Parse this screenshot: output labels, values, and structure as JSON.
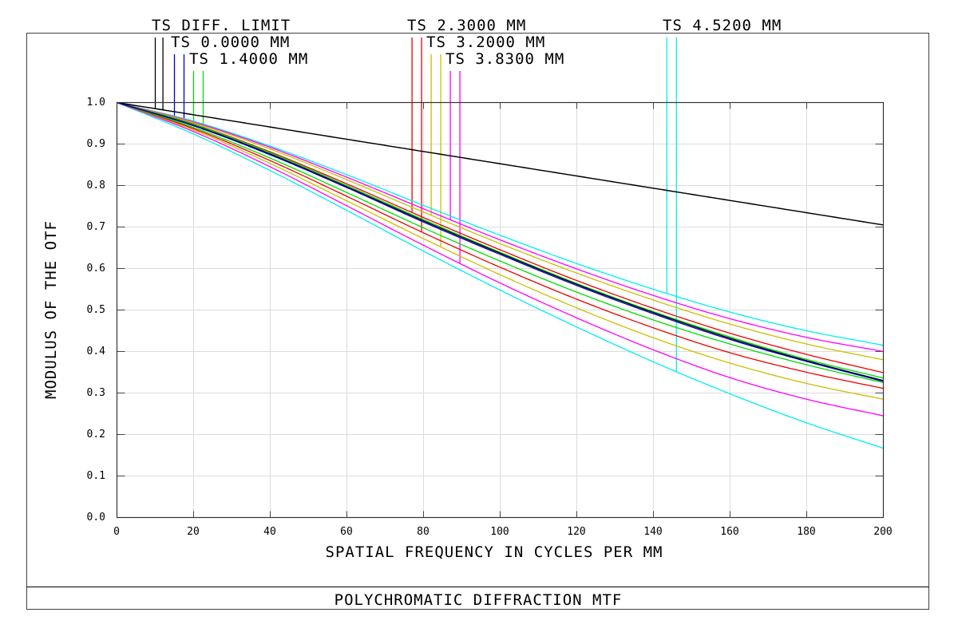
{
  "chart_data": {
    "type": "line",
    "title": "POLYCHROMATIC DIFFRACTION MTF",
    "xlabel": "SPATIAL FREQUENCY IN CYCLES PER MM",
    "ylabel": "MODULUS OF THE OTF",
    "xlim": [
      0,
      200
    ],
    "ylim": [
      0,
      1.0
    ],
    "grid": true,
    "x_ticks": [
      "0",
      "20",
      "40",
      "60",
      "80",
      "100",
      "120",
      "140",
      "160",
      "180",
      "200"
    ],
    "y_ticks": [
      "0.0",
      "0.1",
      "0.2",
      "0.3",
      "0.4",
      "0.5",
      "0.6",
      "0.7",
      "0.8",
      "0.9",
      "1.0"
    ],
    "x": [
      0,
      20,
      40,
      60,
      80,
      100,
      120,
      140,
      160,
      180,
      200
    ],
    "legend": [
      {
        "label": "TS DIFF. LIMIT",
        "color": "#000000"
      },
      {
        "label": "TS 0.0000 MM",
        "color": "#0000cc"
      },
      {
        "label": "TS 1.4000 MM",
        "color": "#00dd00"
      },
      {
        "label": "TS 2.3000 MM",
        "color": "#ee0000"
      },
      {
        "label": "TS 3.2000 MM",
        "color": "#c8c000"
      },
      {
        "label": "TS 3.8300 MM",
        "color": "#ff00ff"
      },
      {
        "label": "TS 4.5200 MM",
        "color": "#00eeee"
      }
    ],
    "series": [
      {
        "name": "DIFF. LIMIT T",
        "color": "#000000",
        "values": [
          1.0,
          0.9705,
          0.941,
          0.9115,
          0.882,
          0.8525,
          0.823,
          0.7935,
          0.764,
          0.7345,
          0.705
        ]
      },
      {
        "name": "DIFF. LIMIT S",
        "color": "#000000",
        "values": [
          1.0,
          0.9705,
          0.941,
          0.9115,
          0.882,
          0.8525,
          0.823,
          0.7935,
          0.764,
          0.7345,
          0.705
        ]
      },
      {
        "name": "0.0000 MM T",
        "color": "#000000",
        "values": [
          1.0,
          0.945,
          0.876,
          0.797,
          0.715,
          0.637,
          0.562,
          0.494,
          0.432,
          0.378,
          0.33
        ]
      },
      {
        "name": "0.0000 MM S",
        "color": "#0000cc",
        "values": [
          1.0,
          0.944,
          0.874,
          0.795,
          0.712,
          0.634,
          0.559,
          0.491,
          0.429,
          0.376,
          0.328
        ]
      },
      {
        "name": "1.4000 MM T",
        "color": "#00dd00",
        "values": [
          1.0,
          0.947,
          0.879,
          0.8,
          0.718,
          0.639,
          0.564,
          0.496,
          0.435,
          0.381,
          0.336
        ]
      },
      {
        "name": "1.4000 MM S",
        "color": "#00dd00",
        "values": [
          1.0,
          0.94,
          0.866,
          0.783,
          0.698,
          0.618,
          0.543,
          0.476,
          0.418,
          0.368,
          0.325
        ]
      },
      {
        "name": "2.3000 MM T",
        "color": "#ee0000",
        "values": [
          1.0,
          0.948,
          0.881,
          0.804,
          0.723,
          0.645,
          0.571,
          0.504,
          0.444,
          0.393,
          0.349
        ]
      },
      {
        "name": "2.3000 MM S",
        "color": "#ee0000",
        "values": [
          1.0,
          0.937,
          0.86,
          0.774,
          0.686,
          0.603,
          0.526,
          0.457,
          0.397,
          0.35,
          0.311
        ]
      },
      {
        "name": "3.2000 MM T",
        "color": "#c8c000",
        "values": [
          1.0,
          0.951,
          0.888,
          0.814,
          0.736,
          0.66,
          0.589,
          0.524,
          0.466,
          0.418,
          0.38
        ]
      },
      {
        "name": "3.2000 MM S",
        "color": "#c8c000",
        "values": [
          1.0,
          0.934,
          0.853,
          0.763,
          0.672,
          0.585,
          0.505,
          0.433,
          0.372,
          0.323,
          0.285
        ]
      },
      {
        "name": "3.8300 MM T",
        "color": "#ff00ff",
        "values": [
          1.0,
          0.953,
          0.892,
          0.82,
          0.744,
          0.669,
          0.599,
          0.535,
          0.479,
          0.434,
          0.4
        ]
      },
      {
        "name": "3.8300 MM S",
        "color": "#ff00ff",
        "values": [
          1.0,
          0.93,
          0.845,
          0.751,
          0.656,
          0.565,
          0.481,
          0.404,
          0.337,
          0.285,
          0.245
        ]
      },
      {
        "name": "4.5200 MM T",
        "color": "#00eeee",
        "values": [
          1.0,
          0.955,
          0.895,
          0.826,
          0.752,
          0.68,
          0.612,
          0.55,
          0.495,
          0.45,
          0.415
        ]
      },
      {
        "name": "4.5200 MM S",
        "color": "#00eeee",
        "values": [
          1.0,
          0.924,
          0.836,
          0.74,
          0.642,
          0.548,
          0.459,
          0.375,
          0.298,
          0.228,
          0.167
        ]
      }
    ],
    "leader_lines": [
      {
        "x": 10,
        "color": "#000000",
        "row": 1
      },
      {
        "x": 12,
        "color": "#000000",
        "row": 1
      },
      {
        "x": 15,
        "color": "#0000cc",
        "row": 2
      },
      {
        "x": 17.5,
        "color": "#0000cc",
        "row": 2
      },
      {
        "x": 20,
        "color": "#00dd00",
        "row": 3
      },
      {
        "x": 22.5,
        "color": "#00dd00",
        "row": 3
      },
      {
        "x": 77,
        "color": "#ee0000",
        "row": 1
      },
      {
        "x": 79.5,
        "color": "#ee0000",
        "row": 1
      },
      {
        "x": 82,
        "color": "#c8c000",
        "row": 2
      },
      {
        "x": 84.5,
        "color": "#c8c000",
        "row": 2
      },
      {
        "x": 87,
        "color": "#ff00ff",
        "row": 3
      },
      {
        "x": 89.5,
        "color": "#ff00ff",
        "row": 3
      },
      {
        "x": 143.5,
        "color": "#00eeee",
        "row": 1
      },
      {
        "x": 146,
        "color": "#00eeee",
        "row": 1
      }
    ]
  }
}
